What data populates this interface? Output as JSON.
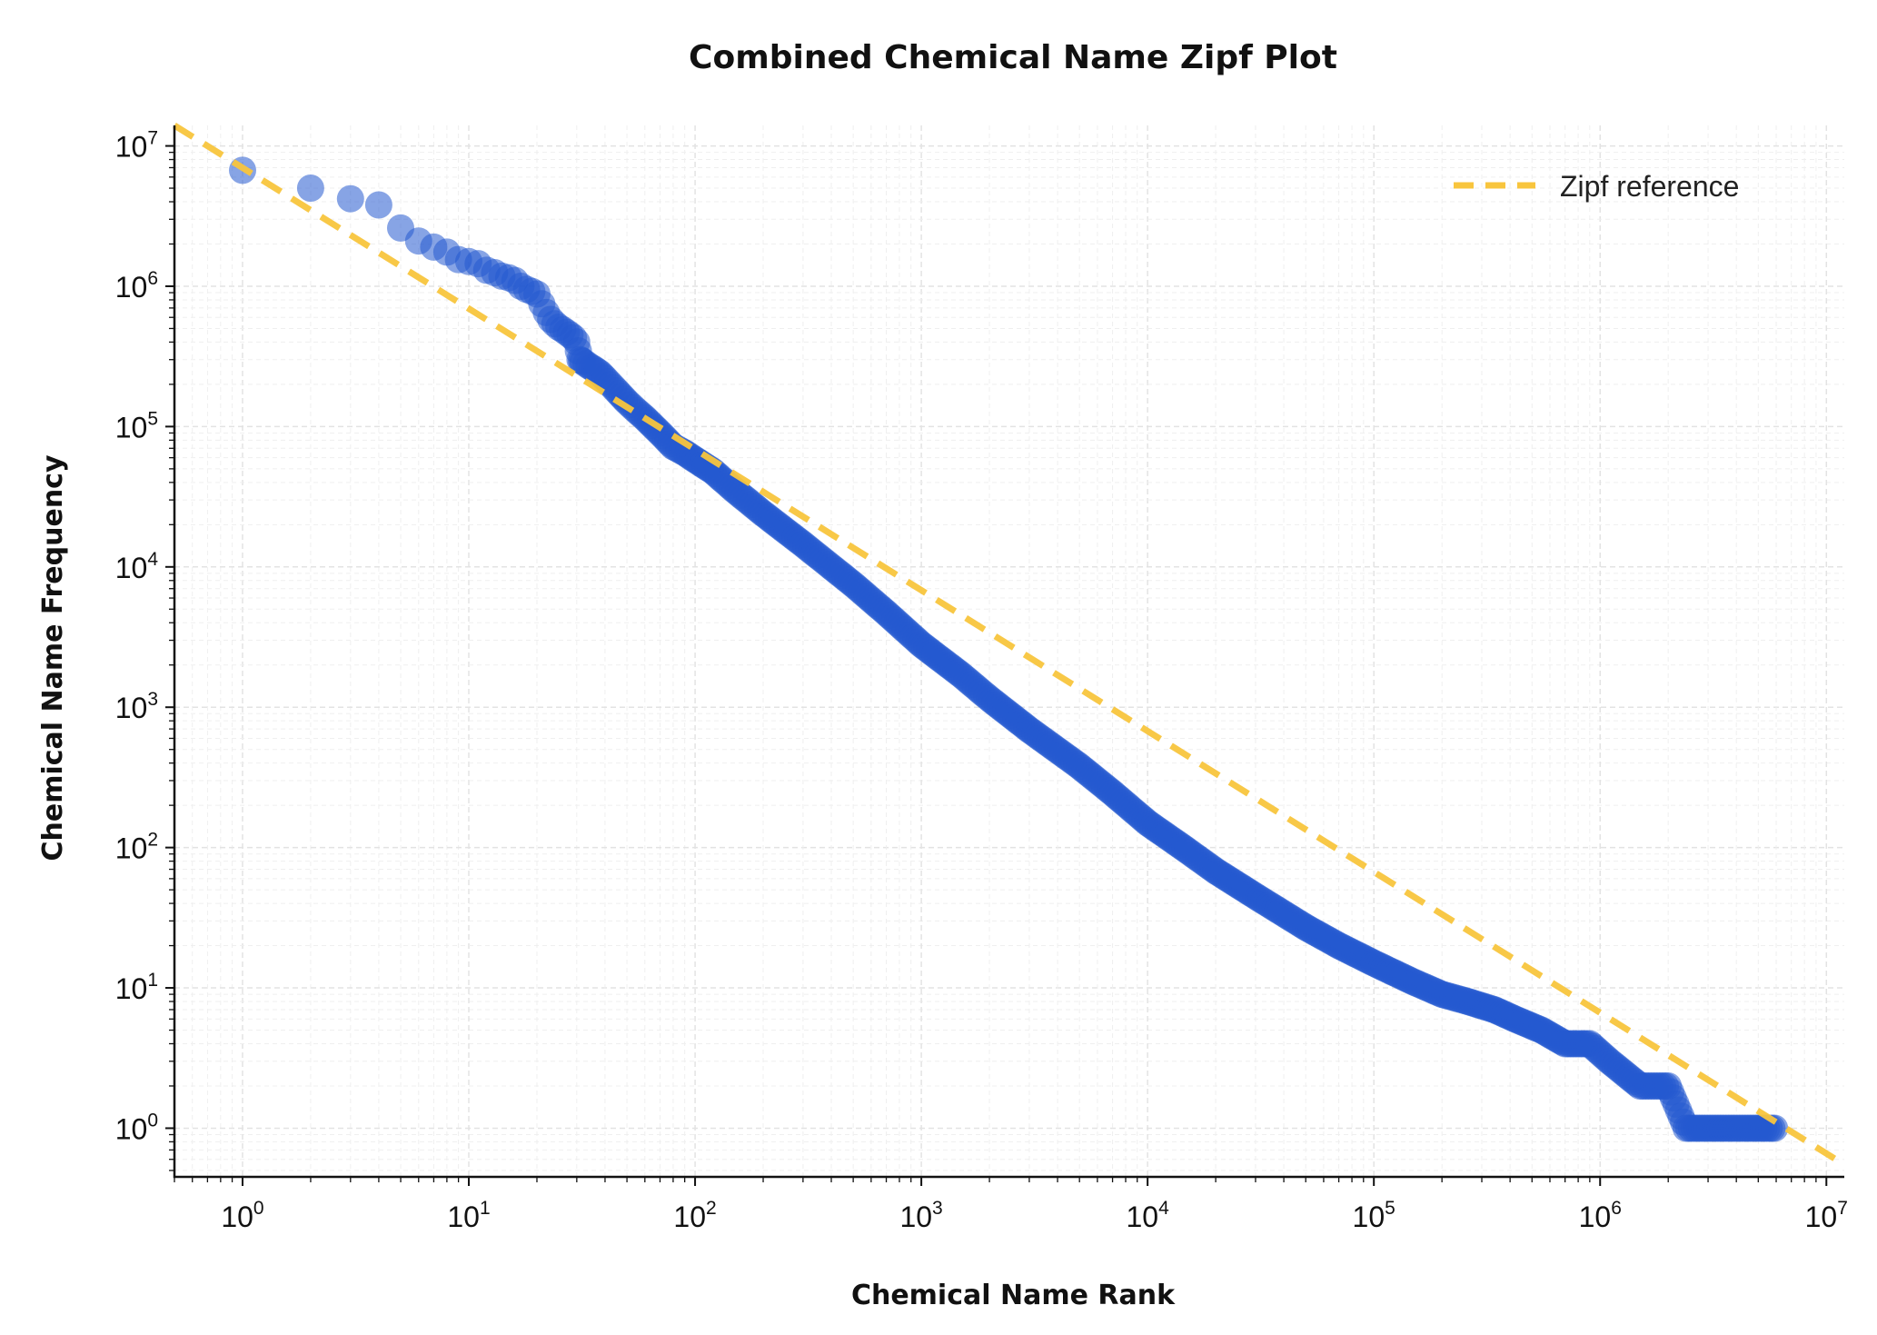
{
  "chart_data": {
    "type": "scatter",
    "title": "Combined Chemical Name Zipf Plot",
    "xlabel": "Chemical Name Rank",
    "ylabel": "Chemical Name Frequency",
    "x_scale": "log",
    "y_scale": "log",
    "xlim": [
      0.5,
      12000000
    ],
    "ylim": [
      0.45,
      14000000
    ],
    "x_tick_labels": [
      {
        "base": "10",
        "exp": "0",
        "value": 1
      },
      {
        "base": "10",
        "exp": "1",
        "value": 10
      },
      {
        "base": "10",
        "exp": "2",
        "value": 100
      },
      {
        "base": "10",
        "exp": "3",
        "value": 1000
      },
      {
        "base": "10",
        "exp": "4",
        "value": 10000
      },
      {
        "base": "10",
        "exp": "5",
        "value": 100000
      },
      {
        "base": "10",
        "exp": "6",
        "value": 1000000
      },
      {
        "base": "10",
        "exp": "7",
        "value": 10000000
      }
    ],
    "y_tick_labels": [
      {
        "base": "10",
        "exp": "0",
        "value": 1
      },
      {
        "base": "10",
        "exp": "1",
        "value": 10
      },
      {
        "base": "10",
        "exp": "2",
        "value": 100
      },
      {
        "base": "10",
        "exp": "3",
        "value": 1000
      },
      {
        "base": "10",
        "exp": "4",
        "value": 10000
      },
      {
        "base": "10",
        "exp": "5",
        "value": 100000
      },
      {
        "base": "10",
        "exp": "6",
        "value": 1000000
      },
      {
        "base": "10",
        "exp": "7",
        "value": 10000000
      }
    ],
    "grid": true,
    "legend_position": "top-right",
    "series": [
      {
        "name": "",
        "kind": "scatter",
        "color": "#2559d0",
        "opacity": 0.55,
        "points": [
          [
            1,
            6700000
          ],
          [
            2,
            5000000
          ],
          [
            3,
            4200000
          ],
          [
            4,
            3800000
          ],
          [
            5,
            2600000
          ],
          [
            6,
            2100000
          ],
          [
            7,
            1900000
          ],
          [
            8,
            1750000
          ],
          [
            9,
            1550000
          ],
          [
            10,
            1500000
          ],
          [
            11,
            1450000
          ],
          [
            12,
            1300000
          ],
          [
            13,
            1250000
          ],
          [
            14,
            1180000
          ],
          [
            15,
            1150000
          ],
          [
            16,
            1100000
          ],
          [
            17,
            1000000
          ],
          [
            18,
            950000
          ],
          [
            19,
            920000
          ],
          [
            20,
            880000
          ],
          [
            21,
            750000
          ],
          [
            22,
            650000
          ],
          [
            23,
            580000
          ],
          [
            24,
            540000
          ],
          [
            25,
            510000
          ],
          [
            26,
            490000
          ],
          [
            27,
            470000
          ],
          [
            28,
            450000
          ],
          [
            29,
            430000
          ],
          [
            30,
            400000
          ],
          [
            31,
            300000
          ],
          [
            32,
            290000
          ],
          [
            34,
            270000
          ],
          [
            36,
            255000
          ],
          [
            38,
            240000
          ],
          [
            40,
            220000
          ],
          [
            45,
            180000
          ],
          [
            50,
            150000
          ],
          [
            55,
            130000
          ],
          [
            60,
            115000
          ],
          [
            70,
            90000
          ],
          [
            80,
            72000
          ],
          [
            90,
            65000
          ],
          [
            100,
            58000
          ],
          [
            120,
            48000
          ],
          [
            150,
            35000
          ],
          [
            200,
            24000
          ],
          [
            300,
            14500
          ],
          [
            400,
            10000
          ],
          [
            500,
            7500
          ],
          [
            700,
            4700
          ],
          [
            1000,
            2800
          ],
          [
            1500,
            1700
          ],
          [
            2000,
            1150
          ],
          [
            3000,
            690
          ],
          [
            5000,
            380
          ],
          [
            7000,
            245
          ],
          [
            10000,
            150
          ],
          [
            15000,
            95
          ],
          [
            20000,
            68
          ],
          [
            30000,
            45
          ],
          [
            50000,
            27
          ],
          [
            70000,
            20
          ],
          [
            100000,
            15
          ],
          [
            150000,
            11
          ],
          [
            200000,
            9
          ],
          [
            260000,
            8
          ],
          [
            340000,
            7
          ],
          [
            420000,
            6
          ],
          [
            550000,
            5
          ],
          [
            700000,
            4
          ],
          [
            900000,
            4
          ],
          [
            1100000,
            3
          ],
          [
            1500000,
            2
          ],
          [
            2000000,
            2
          ],
          [
            2400000,
            1
          ],
          [
            3500000,
            1
          ],
          [
            4500000,
            1
          ],
          [
            5900000,
            1
          ]
        ]
      },
      {
        "name": "Zipf reference",
        "kind": "line",
        "color": "#f8c53d",
        "dash": "dashed",
        "points": [
          [
            0.5,
            14000000
          ],
          [
            12000000,
            0.55
          ]
        ]
      }
    ]
  }
}
